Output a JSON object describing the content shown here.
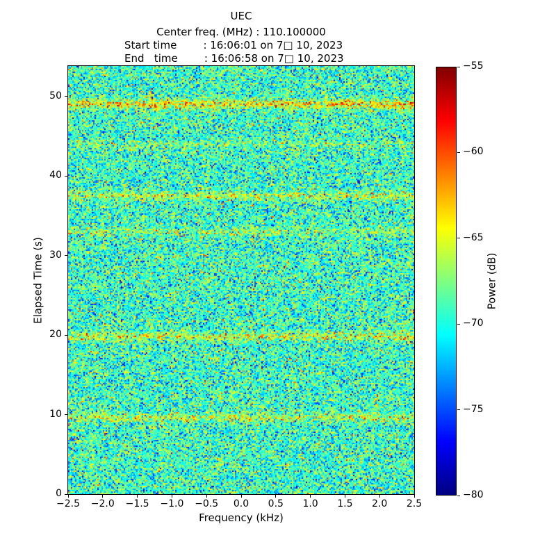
{
  "header": {
    "title": "UEC",
    "center_freq_line": "Center freq. (MHz) : 110.100000",
    "start_time_line": "Start time        : 16:06:01 on 7□ 10, 2023",
    "end_time_line": "End   time        : 16:06:58 on 7□ 10, 2023"
  },
  "chart_data": {
    "type": "heatmap",
    "title": "UEC",
    "subtitle_lines": [
      "Center freq. (MHz) : 110.100000",
      "Start time        : 16:06:01 on 7□ 10, 2023",
      "End   time        : 16:06:58 on 7□ 10, 2023"
    ],
    "center_freq_mhz": 110.1,
    "start_time": "16:06:01 on 7□ 10, 2023",
    "end_time": "16:06:58 on 7□ 10, 2023",
    "xlabel": "Frequency (kHz)",
    "ylabel": "Elapsed Time (s)",
    "xlim": [
      -2.5,
      2.5
    ],
    "ylim": [
      0,
      53.8
    ],
    "x_ticks": [
      -2.5,
      -2.0,
      -1.5,
      -1.0,
      -0.5,
      0.0,
      0.5,
      1.0,
      1.5,
      2.0,
      2.5
    ],
    "x_tick_labels": [
      "−2.5",
      "−2.0",
      "−1.5",
      "−1.0",
      "−0.5",
      "0.0",
      "0.5",
      "1.0",
      "1.5",
      "2.0",
      "2.5"
    ],
    "y_ticks": [
      0,
      10,
      20,
      30,
      40,
      50
    ],
    "y_tick_labels": [
      "0",
      "10",
      "20",
      "30",
      "40",
      "50"
    ],
    "grid": false,
    "colorbar": {
      "label": "Power (dB)",
      "ticks": [
        -55,
        -60,
        -65,
        -70,
        -75,
        -80
      ],
      "tick_labels": [
        "−55",
        "−60",
        "−65",
        "−70",
        "−75",
        "−80"
      ],
      "vmin": -80,
      "vmax": -55,
      "colormap": "jet"
    },
    "noise": {
      "mean_db": -69.3,
      "std_db": 3.1,
      "seed": 42,
      "cols": 249,
      "rows": 308
    },
    "bands": [
      {
        "time_s": 49.0,
        "boost_db": 5.5,
        "width_s": 0.4
      },
      {
        "time_s": 44.0,
        "boost_db": 1.6,
        "width_s": 0.35
      },
      {
        "time_s": 37.5,
        "boost_db": 3.2,
        "width_s": 0.35
      },
      {
        "time_s": 33.0,
        "boost_db": 2.0,
        "width_s": 0.35
      },
      {
        "time_s": 19.8,
        "boost_db": 3.8,
        "width_s": 0.35
      },
      {
        "time_s": 9.6,
        "boost_db": 3.2,
        "width_s": 0.35
      }
    ]
  }
}
